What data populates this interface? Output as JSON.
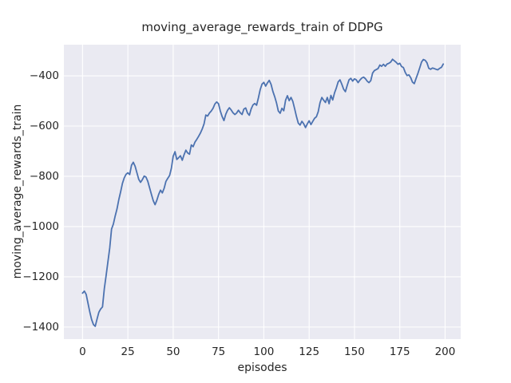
{
  "title": "moving_average_rewards_train of DDPG",
  "axes": {
    "xlabel": "episodes",
    "ylabel": "moving_average_rewards_train",
    "x_tick_labels": [
      "0",
      "25",
      "50",
      "75",
      "100",
      "125",
      "150",
      "175",
      "200"
    ],
    "y_tick_labels": [
      "−400",
      "−600",
      "−800",
      "−1000",
      "−1200",
      "−1400"
    ]
  },
  "colors": {
    "line": "#4C72B0",
    "plot_background": "#EAEAF2",
    "grid": "#FFFFFF",
    "text": "#262626",
    "figure_background": "#FFFFFF"
  },
  "chart_data": {
    "type": "line",
    "title": "moving_average_rewards_train of DDPG",
    "xlabel": "episodes",
    "ylabel": "moving_average_rewards_train",
    "legend": false,
    "grid": true,
    "grid_color": "#FFFFFF",
    "line_color": "#4C72B0",
    "xlim": [
      -10.3,
      208.6
    ],
    "ylim": [
      -1448,
      -276
    ],
    "x_ticks": [
      0,
      25,
      50,
      75,
      100,
      125,
      150,
      175,
      200
    ],
    "y_ticks": [
      -400,
      -600,
      -800,
      -1000,
      -1200,
      -1400
    ],
    "x": [
      0,
      1,
      2,
      3,
      4,
      5,
      6,
      7,
      8,
      9,
      10,
      11,
      12,
      13,
      14,
      15,
      16,
      17,
      18,
      19,
      20,
      21,
      22,
      23,
      24,
      25,
      26,
      27,
      28,
      29,
      30,
      31,
      32,
      33,
      34,
      35,
      36,
      37,
      38,
      39,
      40,
      41,
      42,
      43,
      44,
      45,
      46,
      47,
      48,
      49,
      50,
      51,
      52,
      53,
      54,
      55,
      56,
      57,
      58,
      59,
      60,
      61,
      62,
      63,
      64,
      65,
      66,
      67,
      68,
      69,
      70,
      71,
      72,
      73,
      74,
      75,
      76,
      77,
      78,
      79,
      80,
      81,
      82,
      83,
      84,
      85,
      86,
      87,
      88,
      89,
      90,
      91,
      92,
      93,
      94,
      95,
      96,
      97,
      98,
      99,
      100,
      101,
      102,
      103,
      104,
      105,
      106,
      107,
      108,
      109,
      110,
      111,
      112,
      113,
      114,
      115,
      116,
      117,
      118,
      119,
      120,
      121,
      122,
      123,
      124,
      125,
      126,
      127,
      128,
      129,
      130,
      131,
      132,
      133,
      134,
      135,
      136,
      137,
      138,
      139,
      140,
      141,
      142,
      143,
      144,
      145,
      146,
      147,
      148,
      149,
      150,
      151,
      152,
      153,
      154,
      155,
      156,
      157,
      158,
      159,
      160,
      161,
      162,
      163,
      164,
      165,
      166,
      167,
      168,
      169,
      170,
      171,
      172,
      173,
      174,
      175,
      176,
      177,
      178,
      179,
      180,
      181,
      182,
      183,
      184,
      185,
      186,
      187,
      188,
      189,
      190,
      191,
      192,
      193,
      194,
      195,
      196,
      197,
      198,
      199
    ],
    "y": [
      -1265,
      -1257,
      -1270,
      -1305,
      -1340,
      -1370,
      -1390,
      -1397,
      -1368,
      -1341,
      -1328,
      -1320,
      -1248,
      -1195,
      -1140,
      -1085,
      -1010,
      -990,
      -958,
      -930,
      -893,
      -862,
      -828,
      -806,
      -792,
      -786,
      -793,
      -756,
      -744,
      -760,
      -786,
      -812,
      -824,
      -813,
      -799,
      -803,
      -820,
      -846,
      -872,
      -897,
      -913,
      -895,
      -872,
      -855,
      -866,
      -848,
      -820,
      -808,
      -797,
      -768,
      -720,
      -702,
      -733,
      -726,
      -718,
      -736,
      -714,
      -696,
      -707,
      -712,
      -675,
      -682,
      -664,
      -653,
      -641,
      -628,
      -612,
      -592,
      -556,
      -560,
      -548,
      -540,
      -529,
      -512,
      -504,
      -511,
      -540,
      -562,
      -578,
      -553,
      -537,
      -527,
      -536,
      -547,
      -554,
      -548,
      -537,
      -547,
      -554,
      -532,
      -528,
      -548,
      -557,
      -532,
      -516,
      -510,
      -517,
      -488,
      -455,
      -433,
      -426,
      -441,
      -428,
      -418,
      -434,
      -462,
      -483,
      -508,
      -540,
      -549,
      -529,
      -539,
      -497,
      -479,
      -499,
      -486,
      -502,
      -531,
      -562,
      -588,
      -596,
      -581,
      -591,
      -606,
      -591,
      -579,
      -594,
      -581,
      -569,
      -563,
      -543,
      -507,
      -486,
      -497,
      -506,
      -486,
      -511,
      -478,
      -496,
      -468,
      -448,
      -424,
      -416,
      -433,
      -453,
      -463,
      -438,
      -416,
      -410,
      -421,
      -412,
      -416,
      -427,
      -417,
      -409,
      -405,
      -411,
      -421,
      -427,
      -419,
      -389,
      -379,
      -375,
      -371,
      -357,
      -362,
      -354,
      -362,
      -353,
      -350,
      -345,
      -334,
      -340,
      -346,
      -354,
      -350,
      -363,
      -367,
      -386,
      -399,
      -396,
      -407,
      -425,
      -431,
      -410,
      -390,
      -368,
      -345,
      -335,
      -338,
      -348,
      -370,
      -374,
      -369,
      -371,
      -374,
      -376,
      -370,
      -366,
      -353
    ]
  }
}
